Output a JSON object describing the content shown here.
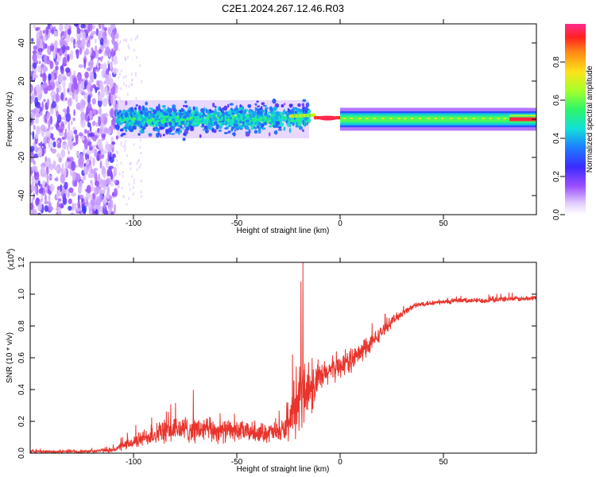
{
  "title": "C2E1.2024.267.12.46.R03",
  "colors": {
    "snr_line": "#e8342c",
    "spectro_base": "#7b2cff"
  },
  "chart_data": [
    {
      "type": "heatmap",
      "name": "spectrogram",
      "title": "C2E1.2024.267.12.46.R03",
      "xlabel": "Height of straight line (km)",
      "ylabel": "Frequency (Hz)",
      "xlim": [
        -150,
        95
      ],
      "ylim": [
        -50,
        50
      ],
      "xticks": [
        -100,
        -50,
        0,
        50
      ],
      "yticks": [
        -40,
        -20,
        0,
        20,
        40
      ],
      "colorbar": {
        "label": "Normalized spectral amplitude",
        "range": [
          0.0,
          1.0
        ],
        "ticks": [
          0.0,
          0.2,
          0.4,
          0.6,
          0.8
        ]
      },
      "description_regions": [
        {
          "x_range": [
            -150,
            -108
          ],
          "freq_range": [
            -50,
            50
          ],
          "amplitude": 0.1
        },
        {
          "x_range": [
            -108,
            -15
          ],
          "freq_range": [
            -8,
            8
          ],
          "amplitude": 0.35
        },
        {
          "x_range": [
            -15,
            0
          ],
          "freq_range": [
            -2,
            2
          ],
          "amplitude": 0.95
        },
        {
          "x_range": [
            0,
            85
          ],
          "freq_range": [
            -4,
            4
          ],
          "amplitude": 0.5
        },
        {
          "x_range": [
            85,
            95
          ],
          "freq_range": [
            -1,
            1
          ],
          "amplitude": 0.95
        }
      ]
    },
    {
      "type": "line",
      "name": "snr",
      "xlabel": "Height of straight line (km)",
      "ylabel": "SNR (10 * v/v)",
      "y_multiplier_label": "(x10",
      "y_multiplier_exp": "4",
      "xlim": [
        -150,
        95
      ],
      "ylim": [
        0,
        1.2
      ],
      "xticks": [
        -100,
        -50,
        0,
        50
      ],
      "yticks": [
        0.0,
        0.2,
        0.4,
        0.6,
        0.8,
        1.0,
        1.2
      ],
      "envelope": {
        "x": [
          -150,
          -125,
          -110,
          -100,
          -90,
          -80,
          -70,
          -60,
          -50,
          -40,
          -30,
          -25,
          -22,
          -20,
          -18,
          -16,
          -14,
          -10,
          -5,
          0,
          5,
          10,
          15,
          20,
          25,
          30,
          35,
          40,
          50,
          60,
          70,
          80,
          90,
          95
        ],
        "mean": [
          0.01,
          0.01,
          0.02,
          0.07,
          0.12,
          0.15,
          0.15,
          0.14,
          0.14,
          0.13,
          0.13,
          0.16,
          0.25,
          0.32,
          0.38,
          0.42,
          0.4,
          0.46,
          0.52,
          0.55,
          0.58,
          0.63,
          0.69,
          0.76,
          0.83,
          0.88,
          0.92,
          0.94,
          0.95,
          0.96,
          0.96,
          0.97,
          0.97,
          0.98
        ],
        "amp": [
          0.01,
          0.01,
          0.02,
          0.05,
          0.08,
          0.1,
          0.1,
          0.09,
          0.08,
          0.07,
          0.08,
          0.1,
          0.18,
          0.25,
          0.3,
          0.25,
          0.2,
          0.12,
          0.1,
          0.09,
          0.09,
          0.08,
          0.07,
          0.05,
          0.04,
          0.03,
          0.02,
          0.02,
          0.02,
          0.02,
          0.02,
          0.02,
          0.02,
          0.02
        ]
      },
      "spikes": [
        {
          "x": -18,
          "y": 1.2
        },
        {
          "x": -19,
          "y": 1.08
        },
        {
          "x": -23,
          "y": 0.62
        }
      ]
    }
  ]
}
